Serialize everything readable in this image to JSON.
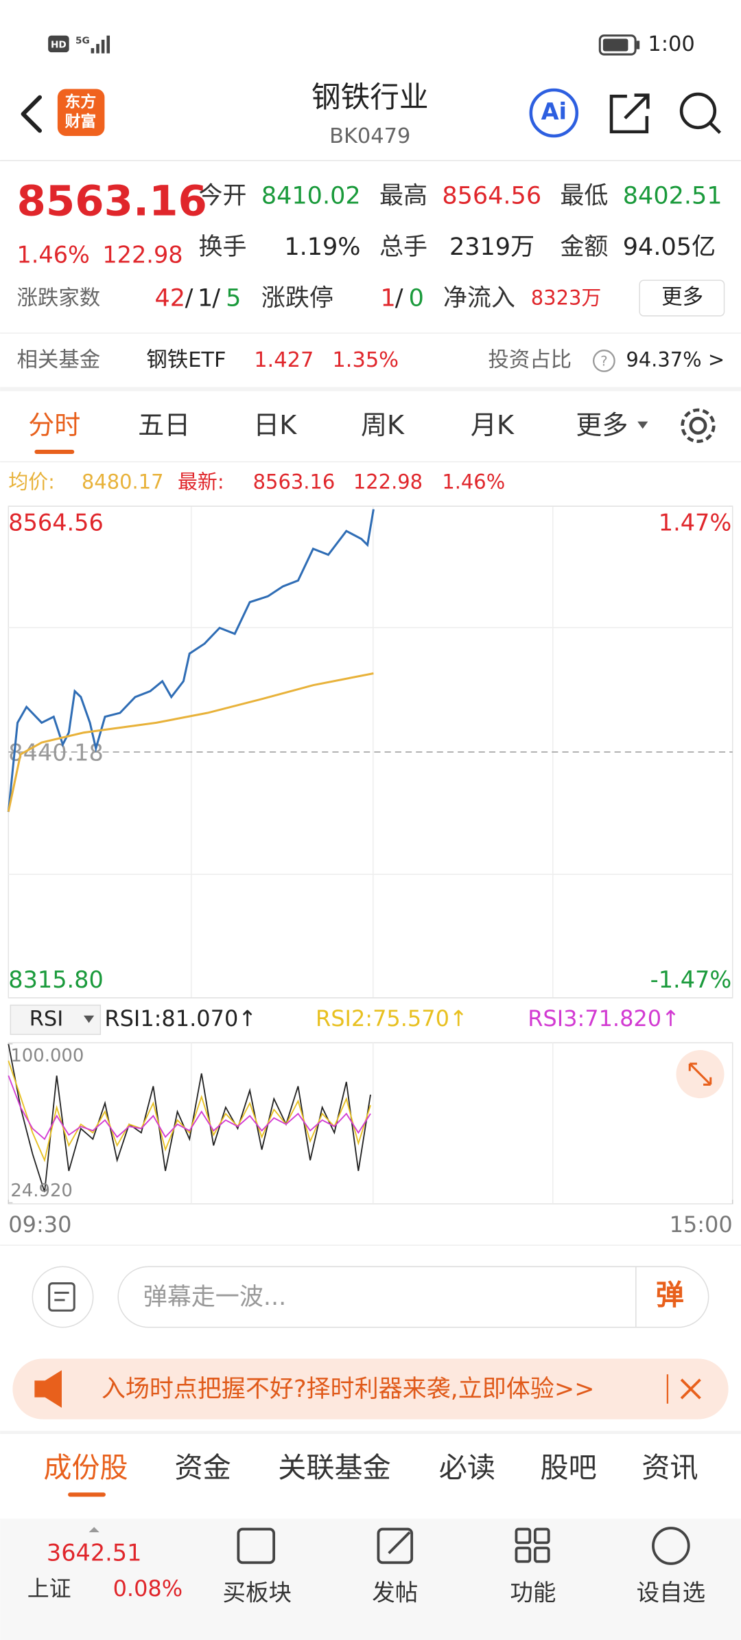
{
  "status_bar": {
    "hd": "HD",
    "network": "5G",
    "time": "1:00"
  },
  "header": {
    "logo": [
      "东方",
      "财富"
    ],
    "title": "钢铁行业",
    "code": "BK0479",
    "ai": "Ai"
  },
  "quote": {
    "price": "8563.16",
    "change_pct": "1.46%",
    "change": "122.98",
    "stats": [
      {
        "label": "今开",
        "value": "8410.02"
      },
      {
        "label": "最高",
        "value": "8564.56"
      },
      {
        "label": "最低",
        "value": "8402.51"
      },
      {
        "label": "换手",
        "value": "1.19%"
      },
      {
        "label": "总手",
        "value": "2319万"
      },
      {
        "label": "金额",
        "value": "94.05亿"
      }
    ],
    "breadth": {
      "label": "涨跌家数",
      "up": "42",
      "flat": "1",
      "down": "5",
      "sep": "/"
    },
    "limit": {
      "label": "涨跌停",
      "up": "1",
      "down": "0",
      "sep": "/"
    },
    "inflow": {
      "label": "净流入",
      "value": "8323万"
    },
    "more": "更多"
  },
  "fund": {
    "label": "相关基金",
    "name": "钢铁ETF",
    "price": "1.427",
    "change": "1.35%",
    "ratio_label": "投资占比",
    "help": "?",
    "ratio": "94.37% >"
  },
  "period_tabs": [
    "分时",
    "五日",
    "日K",
    "周K",
    "月K",
    "更多"
  ],
  "info_bar": {
    "avg_label": "均价:",
    "avg": "8480.17",
    "last_label": "最新:",
    "last": "8563.16",
    "change": "122.98",
    "pct": "1.46%"
  },
  "chart_data": [
    {
      "type": "line",
      "xlim": [
        0,
        240
      ],
      "ylim": [
        8315.8,
        8564.56
      ],
      "yticks": [
        {
          "value": 8315.8,
          "label": "8315.80"
        },
        8440.18,
        8564.56
      ],
      "y2lim": [
        -1.47,
        1.47
      ],
      "y2ticks": [
        {
          "value": -1.47,
          "label": "-1.47%"
        },
        {
          "value": 1.47,
          "label": "1.47%"
        }
      ],
      "series": [
        {
          "color": "#2f6db5",
          "x": [
            0,
            3,
            6,
            11,
            15,
            18,
            20,
            22,
            24,
            27,
            29,
            32,
            37,
            42,
            47,
            51,
            54,
            58,
            60,
            65,
            70,
            75,
            80,
            86,
            91,
            96,
            101,
            106,
            112,
            117,
            119,
            121
          ],
          "values": [
            8409.9,
            8455,
            8463,
            8455,
            8458,
            8444,
            8450,
            8471,
            8468,
            8455,
            8442,
            8458,
            8460,
            8468,
            8471,
            8476,
            8468,
            8476,
            8490,
            8495,
            8503,
            8500,
            8516,
            8519,
            8524,
            8527,
            8543,
            8540,
            8552,
            8548,
            8545,
            8563
          ]
        },
        {
          "color": "#e8b23a",
          "x": [
            0,
            4,
            11,
            25,
            49,
            66,
            84,
            101,
            121
          ],
          "values": [
            8410,
            8439,
            8445,
            8450,
            8455,
            8460,
            8467,
            8474,
            8480
          ]
        }
      ]
    },
    {
      "type": "line",
      "indicator": "RSI",
      "xlim": [
        0,
        240
      ],
      "ylim": [
        24.92,
        100
      ],
      "yticks": [
        {
          "value": 24.92,
          "label": "24.920"
        },
        {
          "value": 100,
          "label": "100.000"
        }
      ],
      "xticks": [
        {
          "value": 0,
          "label": "09:30"
        },
        {
          "value": 240,
          "label": "15:00"
        }
      ],
      "x": [
        0,
        4,
        8,
        12,
        16,
        20,
        24,
        28,
        32,
        36,
        40,
        44,
        48,
        52,
        56,
        60,
        64,
        68,
        72,
        76,
        80,
        84,
        88,
        92,
        96,
        100,
        104,
        108,
        112,
        116,
        120
      ],
      "series": [
        {
          "name": "RSI1:81.070↑",
          "color": "#222222",
          "values": [
            100,
            70,
            48,
            30,
            85,
            40,
            60,
            55,
            72,
            45,
            62,
            58,
            80,
            40,
            68,
            55,
            86,
            52,
            70,
            60,
            78,
            50,
            74,
            62,
            80,
            45,
            70,
            58,
            82,
            40,
            76
          ]
        },
        {
          "name": "RSI2:75.570↑",
          "color": "#e8c020",
          "values": [
            92,
            75,
            58,
            45,
            70,
            52,
            62,
            58,
            68,
            52,
            62,
            60,
            72,
            50,
            64,
            58,
            75,
            57,
            67,
            61,
            72,
            56,
            69,
            62,
            73,
            54,
            67,
            61,
            74,
            53,
            71
          ]
        },
        {
          "name": "RSI3:71.820↑",
          "color": "#d23ad2",
          "values": [
            85,
            70,
            60,
            55,
            66,
            57,
            61,
            59,
            64,
            56,
            61,
            60,
            66,
            56,
            62,
            59,
            68,
            59,
            64,
            61,
            66,
            59,
            65,
            62,
            67,
            59,
            64,
            61,
            67,
            58,
            67
          ]
        }
      ]
    }
  ],
  "comment": {
    "placeholder": "弹幕走一波...",
    "button": "弹"
  },
  "banner": {
    "text": "入场时点把握不好?择时利器来袭,立即体验>>"
  },
  "section_tabs": [
    "成份股",
    "资金",
    "关联基金",
    "必读",
    "股吧",
    "资讯"
  ],
  "bottom_bar": {
    "index_value": "3642.51",
    "index_name": "上证",
    "index_pct": "0.08%",
    "items": [
      "买板块",
      "发帖",
      "功能",
      "设自选"
    ]
  }
}
